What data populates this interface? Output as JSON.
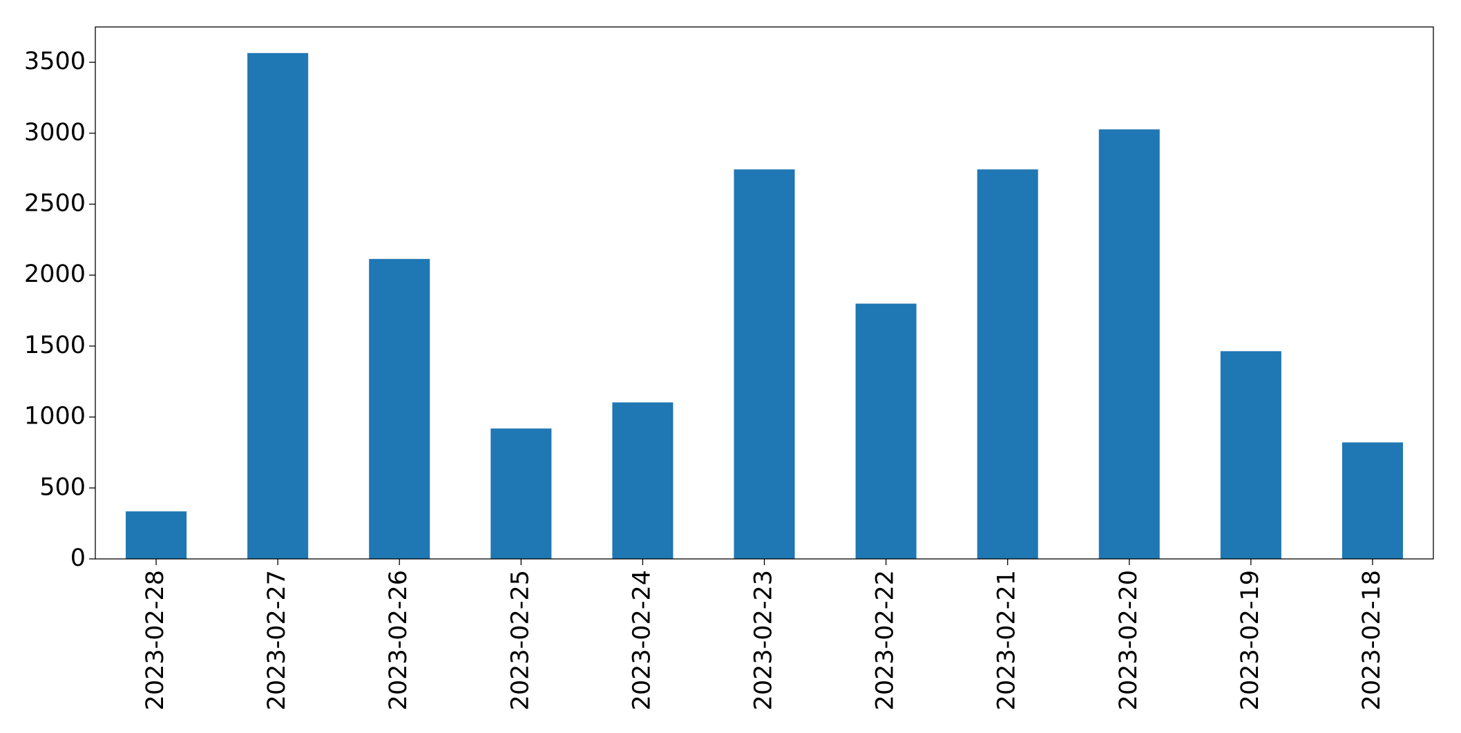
{
  "chart_data": {
    "type": "bar",
    "categories": [
      "2023-02-28",
      "2023-02-27",
      "2023-02-26",
      "2023-02-25",
      "2023-02-24",
      "2023-02-23",
      "2023-02-22",
      "2023-02-21",
      "2023-02-20",
      "2023-02-19",
      "2023-02-18"
    ],
    "values": [
      335,
      3565,
      2114,
      919,
      1103,
      2745,
      1799,
      2745,
      3027,
      1464,
      821
    ],
    "color": "#1f77b4",
    "ylim": [
      0,
      3749
    ],
    "yticks": [
      0,
      500,
      1000,
      1500,
      2000,
      2500,
      3000,
      3500
    ],
    "grid": false
  }
}
